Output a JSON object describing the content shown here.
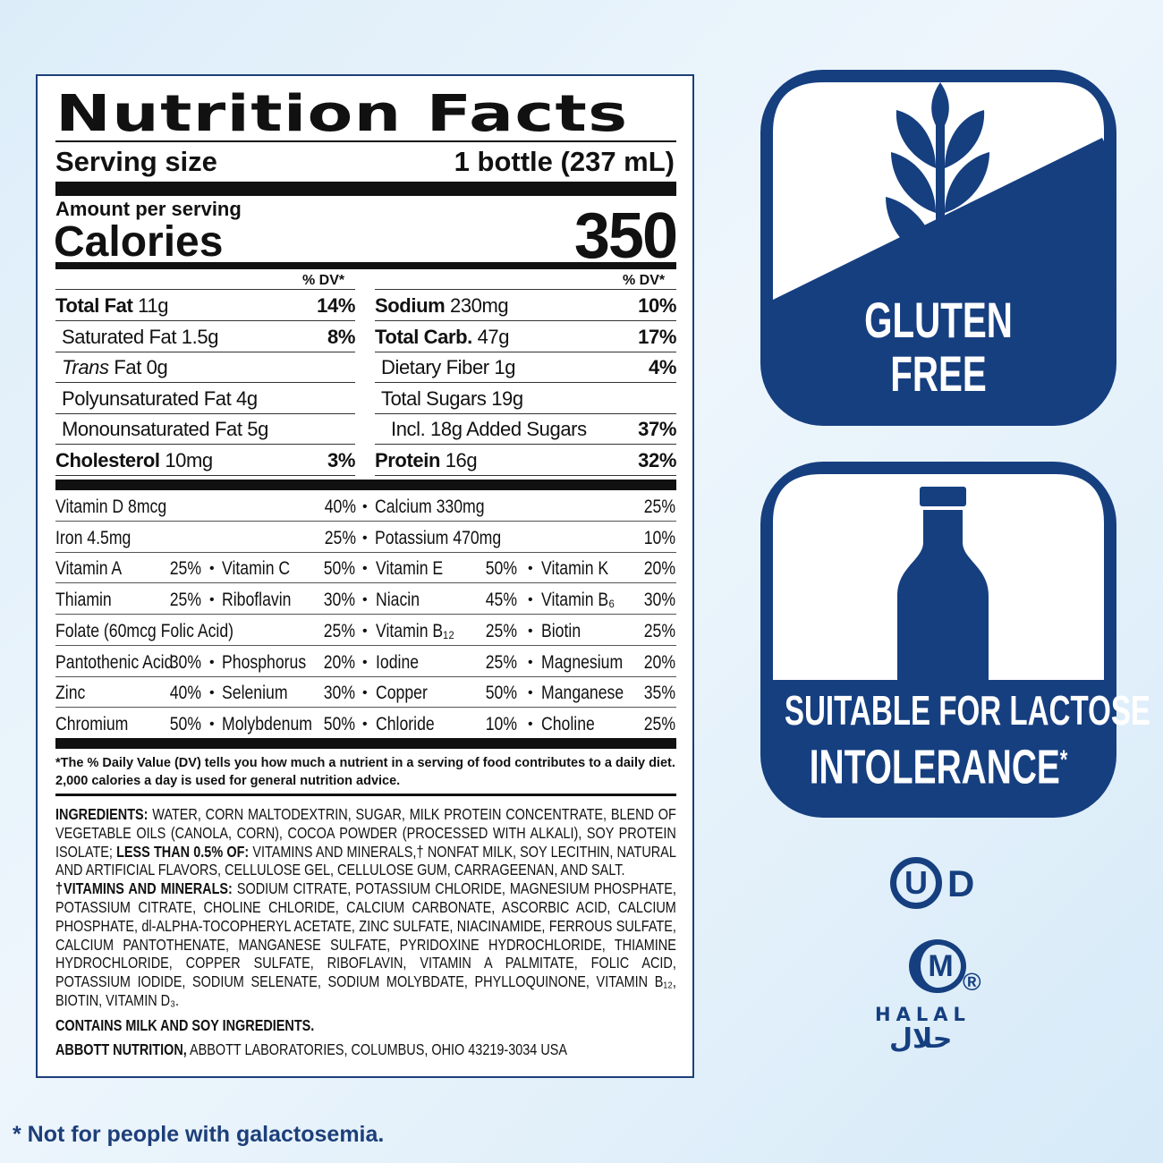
{
  "label": {
    "title": "Nutrition Facts",
    "serving_size_label": "Serving size",
    "serving_size_value": "1 bottle (237 mL)",
    "amount_per_serving": "Amount per serving",
    "calories_label": "Calories",
    "calories_value": "350",
    "dv_header": "% DV*",
    "left_nutrients": [
      {
        "label": "Total Fat",
        "amount": "11g",
        "bold": true,
        "indent": 0,
        "dv": "14%"
      },
      {
        "label": "Saturated Fat 1.5g",
        "amount": "",
        "bold": false,
        "indent": 1,
        "dv": "8%"
      },
      {
        "label": "Trans",
        "amount": "Fat 0g",
        "bold": false,
        "italic": true,
        "indent": 1,
        "dv": ""
      },
      {
        "label": "Polyunsaturated Fat 4g",
        "amount": "",
        "bold": false,
        "indent": 1,
        "dv": ""
      },
      {
        "label": "Monounsaturated Fat 5g",
        "amount": "",
        "bold": false,
        "indent": 1,
        "dv": ""
      },
      {
        "label": "Cholesterol",
        "amount": "10mg",
        "bold": true,
        "indent": 0,
        "dv": "3%"
      }
    ],
    "right_nutrients": [
      {
        "label": "Sodium",
        "amount": "230mg",
        "bold": true,
        "indent": 0,
        "dv": "10%"
      },
      {
        "label": "Total Carb.",
        "amount": "47g",
        "bold": true,
        "indent": 0,
        "dv": "17%"
      },
      {
        "label": "Dietary Fiber 1g",
        "amount": "",
        "bold": false,
        "indent": 1,
        "dv": "4%"
      },
      {
        "label": "Total Sugars 19g",
        "amount": "",
        "bold": false,
        "indent": 1,
        "dv": ""
      },
      {
        "label": "Incl. 18g Added Sugars",
        "amount": "",
        "bold": false,
        "indent": 2,
        "dv": "37%"
      },
      {
        "label": "Protein",
        "amount": "16g",
        "bold": true,
        "indent": 0,
        "dv": "32%"
      }
    ],
    "vitamins_two_col": [
      [
        {
          "name": "Vitamin D 8mcg",
          "dv": "40%"
        },
        {
          "name": "Calcium 330mg",
          "dv": "25%"
        }
      ],
      [
        {
          "name": "Iron 4.5mg",
          "dv": "25%"
        },
        {
          "name": "Potassium 470mg",
          "dv": "10%"
        }
      ]
    ],
    "vitamins_four_col": [
      [
        {
          "name": "Vitamin A",
          "dv": "25%"
        },
        {
          "name": "Vitamin C",
          "dv": "50%"
        },
        {
          "name": "Vitamin E",
          "dv": "50%"
        },
        {
          "name": "Vitamin K",
          "dv": "20%"
        }
      ],
      [
        {
          "name": "Thiamin",
          "dv": "25%"
        },
        {
          "name": "Riboflavin",
          "dv": "30%"
        },
        {
          "name": "Niacin",
          "dv": "45%"
        },
        {
          "name": "Vitamin B₆",
          "dv": "30%"
        }
      ],
      [
        {
          "name": "Folate (60mcg Folic Acid)",
          "dv": "25%"
        },
        {
          "name": "Vitamin B₁₂",
          "dv": "25%"
        },
        {
          "name": "Biotin",
          "dv": "25%"
        }
      ],
      [
        {
          "name": "Pantothenic Acid",
          "dv": "30%"
        },
        {
          "name": "Phosphorus",
          "dv": "20%"
        },
        {
          "name": "Iodine",
          "dv": "25%"
        },
        {
          "name": "Magnesium",
          "dv": "20%"
        }
      ],
      [
        {
          "name": "Zinc",
          "dv": "40%"
        },
        {
          "name": "Selenium",
          "dv": "30%"
        },
        {
          "name": "Copper",
          "dv": "50%"
        },
        {
          "name": "Manganese",
          "dv": "35%"
        }
      ],
      [
        {
          "name": "Chromium",
          "dv": "50%"
        },
        {
          "name": "Molybdenum",
          "dv": "50%"
        },
        {
          "name": "Chloride",
          "dv": "10%"
        },
        {
          "name": "Choline",
          "dv": "25%"
        }
      ]
    ],
    "footnote": "*The % Daily Value (DV) tells you how much a nutrient in a serving of food contributes to a daily diet. 2,000 calories a day is used for general nutrition advice.",
    "ingredients": [
      {
        "bold": true,
        "text": "INGREDIENTS: "
      },
      {
        "bold": false,
        "text": "WATER, CORN MALTODEXTRIN, SUGAR, MILK PROTEIN CONCENTRATE, BLEND OF VEGETABLE OILS (CANOLA, CORN), COCOA POWDER (PROCESSED WITH ALKALI), SOY PROTEIN ISOLATE; "
      },
      {
        "bold": true,
        "text": "LESS THAN 0.5% OF: "
      },
      {
        "bold": false,
        "text": "VITAMINS AND MINERALS,† NONFAT MILK, SOY LECITHIN, NATURAL AND ARTIFICIAL FLAVORS, CELLULOSE GEL, CELLULOSE GUM, CARRAGEENAN, AND SALT."
      }
    ],
    "vitamins_minerals": [
      {
        "bold": true,
        "text": "†VITAMINS AND MINERALS: "
      },
      {
        "bold": false,
        "text": "SODIUM CITRATE, POTASSIUM CHLORIDE, MAGNESIUM PHOSPHATE, POTASSIUM CITRATE, CHOLINE CHLORIDE, CALCIUM CARBONATE, ASCORBIC ACID, CALCIUM PHOSPHATE, dl-ALPHA-TOCOPHERYL ACETATE, ZINC SULFATE, NIACINAMIDE, FERROUS SULFATE, CALCIUM PANTOTHENATE, MANGANESE SULFATE, PYRIDOXINE HYDROCHLORIDE, THIAMINE HYDROCHLORIDE, COPPER SULFATE, RIBOFLAVIN, VITAMIN A PALMITATE, FOLIC ACID, POTASSIUM IODIDE, SODIUM SELENATE, SODIUM MOLYBDATE, PHYLLOQUINONE, VITAMIN B₁₂, BIOTIN, VITAMIN D₃."
      }
    ],
    "allergens": "CONTAINS MILK AND SOY INGREDIENTS.",
    "manufacturer_bold": "ABBOTT NUTRITION,",
    "manufacturer_rest": " ABBOTT LABORATORIES, COLUMBUS, OHIO 43219-3034 USA"
  },
  "badges": {
    "gluten_free_line1": "GLUTEN",
    "gluten_free_line2": "FREE",
    "lactose_line1": "SUITABLE FOR LACTOSE",
    "lactose_line2": "INTOLERANCE",
    "lactose_asterisk": "*",
    "kosher_letter": "U",
    "kosher_suffix": "D",
    "halal_letter": "M",
    "halal_registered": "®",
    "halal_text": "HALAL",
    "halal_arabic": "حلال",
    "color": "#163f80"
  },
  "footer_note": "* Not for people with galactosemia."
}
